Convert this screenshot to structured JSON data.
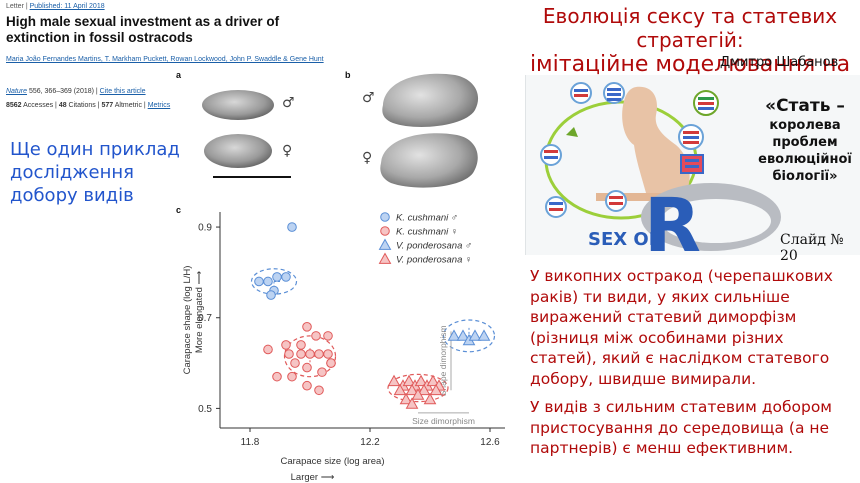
{
  "paper": {
    "meta_letter": "Letter",
    "meta_published": "Published: 11 April 2018",
    "title": "High male sexual investment as a driver of extinction in fossil ostracods",
    "authors": "Maria João Fernandes Martins, T. Markham Puckett, Rowan Lockwood, John P. Swaddle & Gene Hunt",
    "journal_name": "Nature",
    "journal_rest": " 556, 366–369 (2018)  |  ",
    "cite": "Cite this article",
    "accesses": "8562",
    "accesses_label": " Accesses  |  ",
    "citations": "48",
    "citations_label": " Citations  |  ",
    "altmetric": "577",
    "altmetric_label": " Altmetric  |  ",
    "metrics_link": "Metrics",
    "panel_a": "a",
    "panel_b": "b",
    "panel_c": "c",
    "male_symbol": "♂",
    "female_symbol": "♀"
  },
  "left_note": "Ще один приклад дослідження добору видів",
  "deck": {
    "title_line1": "Еволюція сексу та статевих стратегій:",
    "title_line2": "імітаційне моделювання на R",
    "author": "Дмитро Шабанов",
    "quote_line1": "«Стать –",
    "quote_line2": "королева проблем еволюційної біології»",
    "slide_number": "Слайд № 20",
    "logo_text_small": "SEX ON",
    "logo_text_big": "R"
  },
  "right_text": {
    "p1": "У викопних остракод (черепашкових раків) ти види, у яких сильніше виражений статевий диморфізм (різниця між особинами різних статей), який є наслідком статевого добору, швидше вимирали.",
    "p2": "У видів з сильним статевим добором пристосування до середовища (а не партнерів) є менш ефективним."
  },
  "chart_data": {
    "type": "scatter",
    "xlabel": "Carapace size (log area)",
    "xlabel2": "Larger",
    "ylabel": "Carapace shape (log L/H)",
    "ylabel2": "More elongated",
    "xlim": [
      11.7,
      12.65
    ],
    "ylim": [
      0.47,
      0.92
    ],
    "xticks": [
      "11.8",
      "12.2",
      "12.6"
    ],
    "yticks": [
      "0.9",
      "0.7",
      "0.5"
    ],
    "annotation_shape": "Shape dimorphism",
    "annotation_size": "Size dimorphism",
    "legend": [
      "K. cushmani ♂",
      "K. cushmani ♀",
      "V. ponderosana ♂",
      "V. ponderosana ♀"
    ],
    "colors": {
      "blue": "#5b8fd6",
      "blue_fill": "#bcd3f2",
      "red": "#e05a5a",
      "red_fill": "#f6c4c4"
    },
    "series": [
      {
        "name": "K. cushmani ♂",
        "marker": "circle",
        "color": "blue",
        "points": [
          [
            11.94,
            0.9
          ],
          [
            11.83,
            0.78
          ],
          [
            11.86,
            0.78
          ],
          [
            11.89,
            0.79
          ],
          [
            11.92,
            0.79
          ],
          [
            11.88,
            0.76
          ],
          [
            11.87,
            0.75
          ]
        ]
      },
      {
        "name": "K. cushmani ♀",
        "marker": "circle",
        "color": "red",
        "points": [
          [
            11.99,
            0.68
          ],
          [
            12.06,
            0.66
          ],
          [
            12.02,
            0.66
          ],
          [
            11.97,
            0.64
          ],
          [
            11.92,
            0.64
          ],
          [
            11.93,
            0.62
          ],
          [
            11.97,
            0.62
          ],
          [
            12.0,
            0.62
          ],
          [
            12.03,
            0.62
          ],
          [
            12.06,
            0.62
          ],
          [
            12.07,
            0.6
          ],
          [
            11.95,
            0.6
          ],
          [
            11.99,
            0.59
          ],
          [
            12.04,
            0.58
          ],
          [
            12.07,
            0.6
          ],
          [
            11.86,
            0.63
          ],
          [
            11.89,
            0.57
          ],
          [
            11.94,
            0.57
          ],
          [
            11.99,
            0.55
          ],
          [
            12.03,
            0.54
          ]
        ]
      },
      {
        "name": "V. ponderosana ♂",
        "marker": "triangle",
        "color": "blue",
        "points": [
          [
            12.48,
            0.66
          ],
          [
            12.51,
            0.66
          ],
          [
            12.53,
            0.65
          ],
          [
            12.55,
            0.66
          ],
          [
            12.58,
            0.66
          ]
        ]
      },
      {
        "name": "V. ponderosana ♀",
        "marker": "triangle",
        "color": "red",
        "points": [
          [
            12.28,
            0.56
          ],
          [
            12.31,
            0.55
          ],
          [
            12.33,
            0.56
          ],
          [
            12.35,
            0.55
          ],
          [
            12.37,
            0.56
          ],
          [
            12.39,
            0.55
          ],
          [
            12.41,
            0.56
          ],
          [
            12.43,
            0.55
          ],
          [
            12.3,
            0.54
          ],
          [
            12.34,
            0.54
          ],
          [
            12.38,
            0.54
          ],
          [
            12.42,
            0.54
          ],
          [
            12.36,
            0.53
          ],
          [
            12.32,
            0.52
          ],
          [
            12.4,
            0.52
          ],
          [
            12.34,
            0.51
          ]
        ]
      }
    ],
    "ellipses": [
      {
        "color": "blue",
        "cx": 11.88,
        "cy": 0.78,
        "rx": 0.075,
        "ry": 0.028
      },
      {
        "color": "red",
        "cx": 12.0,
        "cy": 0.615,
        "rx": 0.085,
        "ry": 0.045
      },
      {
        "color": "red",
        "cx": 12.36,
        "cy": 0.545,
        "rx": 0.1,
        "ry": 0.03
      },
      {
        "color": "blue",
        "cx": 12.53,
        "cy": 0.66,
        "rx": 0.085,
        "ry": 0.035
      }
    ]
  }
}
